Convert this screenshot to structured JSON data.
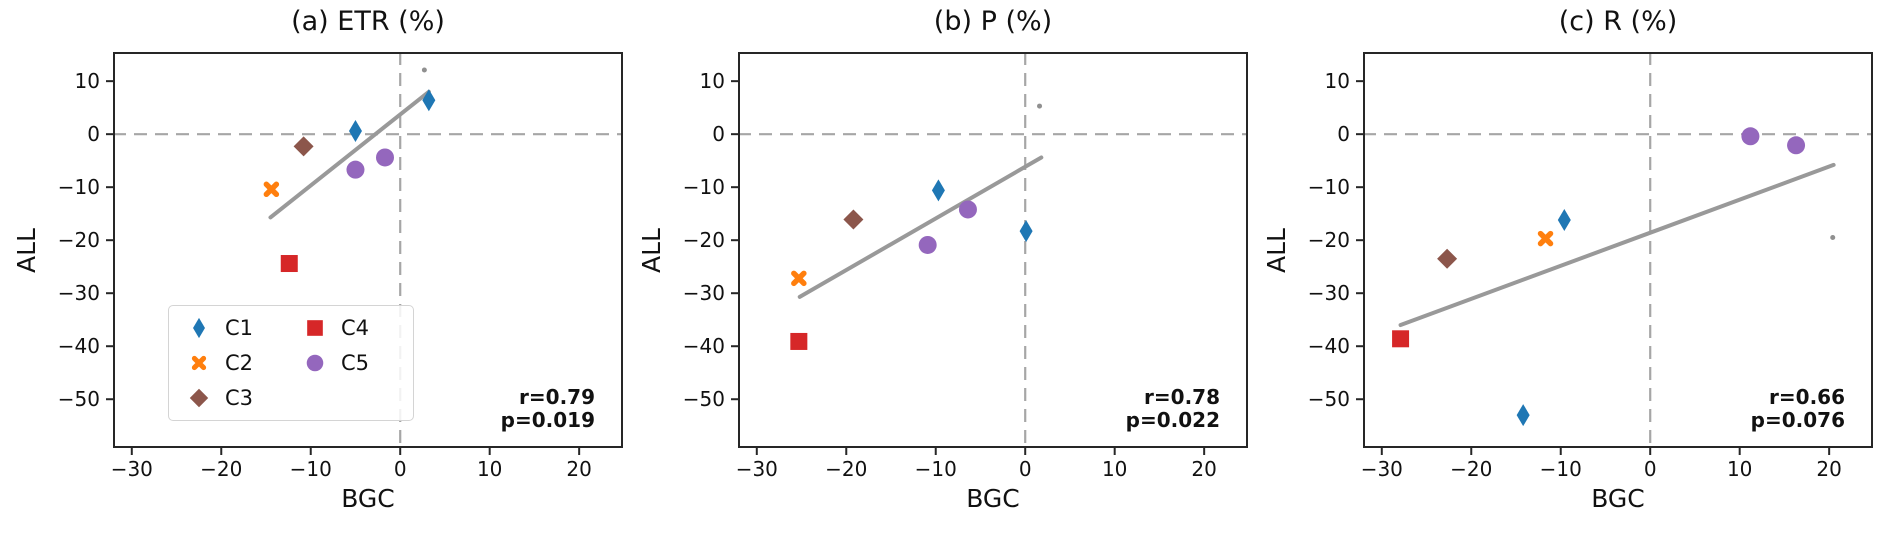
{
  "figure": {
    "background": "#ffffff",
    "spine_color": "#262626",
    "reference_line_color": "#a6a6a6",
    "trend_line_color": "#999999",
    "stray_dot_color": "#909090"
  },
  "legend": {
    "location": "lower-left of panel (a)",
    "entries": [
      {
        "name": "C1",
        "marker": "thin-diamond",
        "color": "#1f77b4"
      },
      {
        "name": "C2",
        "marker": "x-cross",
        "color": "#ff7f0e"
      },
      {
        "name": "C3",
        "marker": "diamond",
        "color": "#8c564b"
      },
      {
        "name": "C4",
        "marker": "square",
        "color": "#d62728"
      },
      {
        "name": "C5",
        "marker": "circle",
        "color": "#9467bd"
      }
    ]
  },
  "series_meta": {
    "C1": {
      "marker": "thin-diamond",
      "color": "#1f77b4"
    },
    "C2": {
      "marker": "x-cross",
      "color": "#ff7f0e"
    },
    "C3": {
      "marker": "diamond",
      "color": "#8c564b"
    },
    "C4": {
      "marker": "square",
      "color": "#d62728"
    },
    "C5": {
      "marker": "circle",
      "color": "#9467bd"
    },
    "unlabeled-dot": {
      "marker": "dot",
      "color": "#909090"
    }
  },
  "chart_data": [
    {
      "type": "scatter",
      "title": "(a) ETR (%)",
      "xlabel": "BGC",
      "ylabel": "ALL",
      "xlim": [
        -32.1,
        24.9
      ],
      "ylim": [
        -59.2,
        15.5
      ],
      "xticks": [
        -30,
        -20,
        -10,
        0,
        10,
        20
      ],
      "yticks": [
        10,
        0,
        -10,
        -20,
        -30,
        -40,
        -50
      ],
      "reference_lines": {
        "x": 0,
        "y": 0
      },
      "r_label": "r=0.79",
      "p_label": "p=0.019",
      "trend_line": {
        "x": [
          -14.5,
          3.2
        ],
        "y": [
          -15.7,
          8.0
        ]
      },
      "series": [
        {
          "name": "C1",
          "points": [
            [
              -5.0,
              0.6
            ],
            [
              3.2,
              6.4
            ]
          ]
        },
        {
          "name": "C2",
          "points": [
            [
              -14.4,
              -10.4
            ]
          ]
        },
        {
          "name": "C3",
          "points": [
            [
              -10.8,
              -2.3
            ]
          ]
        },
        {
          "name": "C4",
          "points": [
            [
              -12.4,
              -24.4
            ]
          ]
        },
        {
          "name": "C5",
          "points": [
            [
              -5.0,
              -6.7
            ],
            [
              -1.7,
              -4.4
            ]
          ]
        },
        {
          "name": "unlabeled-dot",
          "points": [
            [
              2.7,
              12.1
            ]
          ]
        }
      ]
    },
    {
      "type": "scatter",
      "title": "(b) P (%)",
      "xlabel": "BGC",
      "ylabel": "ALL",
      "xlim": [
        -32.1,
        24.9
      ],
      "ylim": [
        -59.2,
        15.5
      ],
      "xticks": [
        -30,
        -20,
        -10,
        0,
        10,
        20
      ],
      "yticks": [
        10,
        0,
        -10,
        -20,
        -30,
        -40,
        -50
      ],
      "reference_lines": {
        "x": 0,
        "y": 0
      },
      "r_label": "r=0.78",
      "p_label": "p=0.022",
      "trend_line": {
        "x": [
          -25.2,
          1.8
        ],
        "y": [
          -30.7,
          -4.4
        ]
      },
      "series": [
        {
          "name": "C1",
          "points": [
            [
              -9.7,
              -10.6
            ],
            [
              0.1,
              -18.3
            ]
          ]
        },
        {
          "name": "C2",
          "points": [
            [
              -25.3,
              -27.2
            ]
          ]
        },
        {
          "name": "C3",
          "points": [
            [
              -19.2,
              -16.1
            ]
          ]
        },
        {
          "name": "C4",
          "points": [
            [
              -25.3,
              -39.1
            ]
          ]
        },
        {
          "name": "C5",
          "points": [
            [
              -10.9,
              -20.9
            ],
            [
              -6.4,
              -14.2
            ]
          ]
        },
        {
          "name": "unlabeled-dot",
          "points": [
            [
              1.6,
              5.3
            ]
          ]
        }
      ]
    },
    {
      "type": "scatter",
      "title": "(c) R (%)",
      "xlabel": "BGC",
      "ylabel": "ALL",
      "xlim": [
        -32.1,
        24.9
      ],
      "ylim": [
        -59.2,
        15.5
      ],
      "xticks": [
        -30,
        -20,
        -10,
        0,
        10,
        20
      ],
      "yticks": [
        10,
        0,
        -10,
        -20,
        -30,
        -40,
        -50
      ],
      "reference_lines": {
        "x": 0,
        "y": 0
      },
      "r_label": "r=0.66",
      "p_label": "p=0.076",
      "trend_line": {
        "x": [
          -27.9,
          20.5
        ],
        "y": [
          -36.0,
          -5.8
        ]
      },
      "series": [
        {
          "name": "C1",
          "points": [
            [
              -9.6,
              -16.2
            ],
            [
              -14.2,
              -53.0
            ]
          ]
        },
        {
          "name": "C2",
          "points": [
            [
              -11.7,
              -19.7
            ]
          ]
        },
        {
          "name": "C3",
          "points": [
            [
              -22.7,
              -23.5
            ]
          ]
        },
        {
          "name": "C4",
          "points": [
            [
              -27.9,
              -38.6
            ]
          ]
        },
        {
          "name": "C5",
          "points": [
            [
              11.2,
              -0.4
            ],
            [
              16.3,
              -2.1
            ]
          ]
        },
        {
          "name": "unlabeled-dot",
          "points": [
            [
              20.4,
              -19.5
            ]
          ]
        }
      ]
    }
  ]
}
